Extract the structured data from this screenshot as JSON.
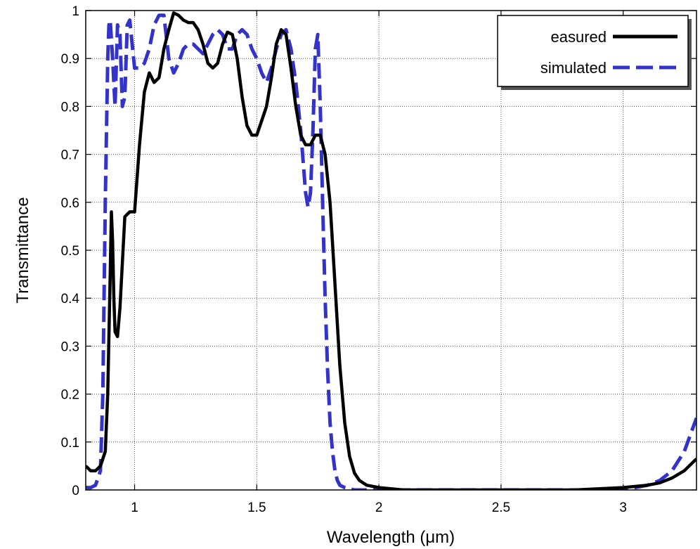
{
  "chart_data": {
    "type": "line",
    "title": "",
    "xlabel": "Wavelength (μm)",
    "ylabel": "Transmittance",
    "xlim": [
      0.8,
      3.3
    ],
    "ylim": [
      0,
      1
    ],
    "xticks": [
      1,
      1.5,
      2,
      2.5,
      3
    ],
    "xtick_labels": [
      "1",
      "1.5",
      "2",
      "2.5",
      "3"
    ],
    "yticks": [
      0,
      0.1,
      0.2,
      0.3,
      0.4,
      0.5,
      0.6,
      0.7,
      0.8,
      0.9,
      1
    ],
    "ytick_labels": [
      "0",
      "0.1",
      "0.2",
      "0.3",
      "0.4",
      "0.5",
      "0.6",
      "0.7",
      "0.8",
      "0.9",
      "1"
    ],
    "grid": true,
    "legend_position": "top-right",
    "series": [
      {
        "name": "easured",
        "color": "#000000",
        "style": "solid",
        "x": [
          0.8,
          0.82,
          0.84,
          0.86,
          0.88,
          0.89,
          0.9,
          0.905,
          0.91,
          0.915,
          0.92,
          0.93,
          0.94,
          0.96,
          0.98,
          1.0,
          1.02,
          1.04,
          1.06,
          1.08,
          1.1,
          1.12,
          1.14,
          1.16,
          1.18,
          1.2,
          1.22,
          1.24,
          1.26,
          1.28,
          1.3,
          1.32,
          1.34,
          1.36,
          1.38,
          1.4,
          1.42,
          1.44,
          1.46,
          1.48,
          1.5,
          1.52,
          1.54,
          1.56,
          1.58,
          1.6,
          1.62,
          1.64,
          1.66,
          1.68,
          1.7,
          1.72,
          1.74,
          1.76,
          1.78,
          1.8,
          1.82,
          1.84,
          1.86,
          1.88,
          1.9,
          1.92,
          1.95,
          2.0,
          2.1,
          2.2,
          2.4,
          2.6,
          2.8,
          3.0,
          3.1,
          3.15,
          3.2,
          3.25,
          3.3
        ],
        "y": [
          0.05,
          0.04,
          0.04,
          0.05,
          0.08,
          0.2,
          0.45,
          0.58,
          0.52,
          0.4,
          0.33,
          0.32,
          0.38,
          0.57,
          0.58,
          0.58,
          0.72,
          0.83,
          0.87,
          0.85,
          0.86,
          0.92,
          0.96,
          0.995,
          0.99,
          0.98,
          0.975,
          0.975,
          0.96,
          0.93,
          0.89,
          0.88,
          0.89,
          0.93,
          0.955,
          0.95,
          0.9,
          0.82,
          0.76,
          0.74,
          0.74,
          0.77,
          0.8,
          0.86,
          0.93,
          0.96,
          0.95,
          0.88,
          0.8,
          0.74,
          0.72,
          0.72,
          0.74,
          0.74,
          0.7,
          0.6,
          0.43,
          0.26,
          0.14,
          0.07,
          0.035,
          0.02,
          0.01,
          0.005,
          0.0,
          0.0,
          0.0,
          0.0,
          0.0,
          0.005,
          0.01,
          0.015,
          0.025,
          0.04,
          0.065
        ]
      },
      {
        "name": "simulated",
        "color": "#3333cc",
        "style": "dashed",
        "x": [
          0.8,
          0.82,
          0.84,
          0.86,
          0.87,
          0.88,
          0.89,
          0.895,
          0.9,
          0.91,
          0.92,
          0.93,
          0.94,
          0.95,
          0.96,
          0.97,
          0.98,
          1.0,
          1.02,
          1.04,
          1.06,
          1.08,
          1.1,
          1.12,
          1.14,
          1.16,
          1.18,
          1.2,
          1.22,
          1.24,
          1.26,
          1.28,
          1.3,
          1.32,
          1.34,
          1.36,
          1.38,
          1.4,
          1.42,
          1.44,
          1.46,
          1.48,
          1.5,
          1.52,
          1.54,
          1.56,
          1.58,
          1.6,
          1.62,
          1.64,
          1.66,
          1.68,
          1.7,
          1.71,
          1.72,
          1.73,
          1.74,
          1.75,
          1.76,
          1.77,
          1.78,
          1.79,
          1.8,
          1.81,
          1.82,
          1.83,
          1.84,
          1.86,
          1.88,
          1.9,
          1.92,
          2.0,
          2.2,
          2.6,
          3.0,
          3.1,
          3.15,
          3.2,
          3.25,
          3.3
        ],
        "y": [
          0.005,
          0.005,
          0.01,
          0.04,
          0.2,
          0.6,
          0.9,
          0.97,
          0.98,
          0.9,
          0.8,
          0.97,
          0.95,
          0.8,
          0.82,
          0.97,
          0.98,
          0.88,
          0.88,
          0.89,
          0.92,
          0.97,
          0.99,
          0.99,
          0.9,
          0.87,
          0.89,
          0.92,
          0.93,
          0.93,
          0.92,
          0.91,
          0.93,
          0.95,
          0.96,
          0.95,
          0.92,
          0.92,
          0.95,
          0.96,
          0.95,
          0.92,
          0.9,
          0.87,
          0.85,
          0.88,
          0.92,
          0.95,
          0.96,
          0.92,
          0.85,
          0.75,
          0.62,
          0.59,
          0.62,
          0.75,
          0.92,
          0.95,
          0.8,
          0.59,
          0.4,
          0.25,
          0.14,
          0.08,
          0.04,
          0.02,
          0.01,
          0.005,
          0.002,
          0.0,
          0.0,
          0.0,
          0.0,
          0.0,
          0.0,
          0.01,
          0.02,
          0.04,
          0.08,
          0.15
        ]
      }
    ]
  },
  "legend": {
    "items": [
      {
        "label": "easured",
        "color": "#000000",
        "style": "solid"
      },
      {
        "label": "simulated",
        "color": "#3333cc",
        "style": "dashed"
      }
    ]
  },
  "axes": {
    "xlabel": "Wavelength (μm)",
    "ylabel": "Transmittance"
  }
}
